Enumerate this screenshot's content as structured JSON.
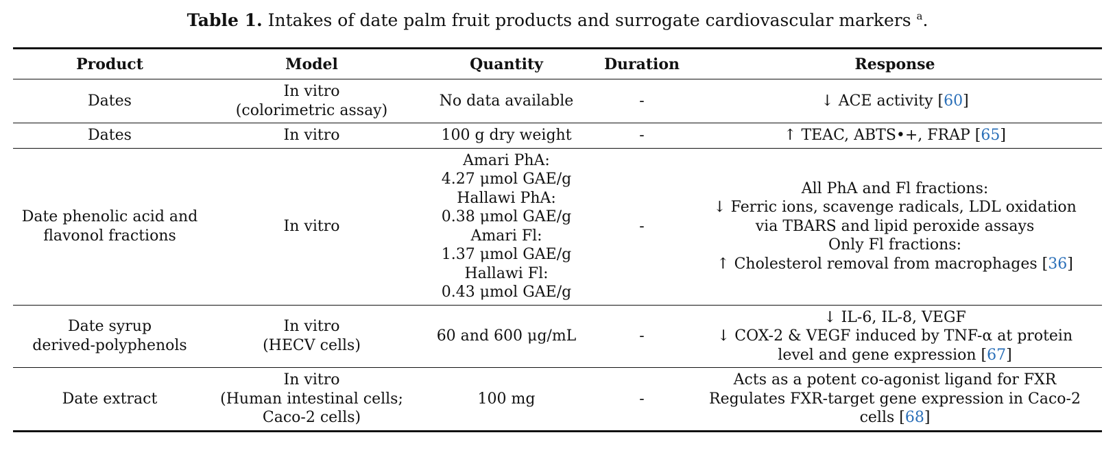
{
  "caption": {
    "label": "Table 1.",
    "text": "Intakes of date palm fruit products and surrogate cardiovascular markers",
    "footnote_mark": "a",
    "end": "."
  },
  "headers": [
    "Product",
    "Model",
    "Quantity",
    "Duration",
    "Response"
  ],
  "rows": [
    {
      "product": [
        "Dates"
      ],
      "model": [
        "In vitro",
        "(colorimetric assay)"
      ],
      "quantity": [
        "No data available"
      ],
      "duration": "-",
      "response": [
        {
          "text": "↓ ACE activity [",
          "ref": "60",
          "end": "]"
        }
      ]
    },
    {
      "product": [
        "Dates"
      ],
      "model": [
        "In vitro"
      ],
      "quantity": [
        "100 g dry weight"
      ],
      "duration": "-",
      "response": [
        {
          "text": "↑ TEAC, ABTS•+, FRAP [",
          "ref": "65",
          "end": "]"
        }
      ]
    },
    {
      "product": [
        "Date phenolic acid and",
        "flavonol fractions"
      ],
      "model": [
        "In vitro"
      ],
      "quantity": [
        "Amari PhA:",
        "4.27 μmol GAE/g",
        "Hallawi PhA:",
        "0.38 μmol GAE/g",
        "Amari Fl:",
        "1.37 μmol GAE/g",
        "Hallawi Fl:",
        "0.43 μmol GAE/g"
      ],
      "duration": "-",
      "response": [
        {
          "text": "All PhA and Fl fractions:",
          "ref": "",
          "end": ""
        },
        {
          "text": "↓ Ferric ions, scavenge radicals, LDL oxidation",
          "ref": "",
          "end": ""
        },
        {
          "text": "via TBARS and lipid peroxide assays",
          "ref": "",
          "end": ""
        },
        {
          "text": "Only Fl fractions:",
          "ref": "",
          "end": ""
        },
        {
          "text": "↑ Cholesterol removal from macrophages [",
          "ref": "36",
          "end": "]"
        }
      ]
    },
    {
      "product": [
        "Date syrup",
        "derived-polyphenols"
      ],
      "model": [
        "In vitro",
        "(HECV cells)"
      ],
      "quantity": [
        "60 and 600 μg/mL"
      ],
      "duration": "-",
      "response": [
        {
          "text": "↓ IL-6, IL-8, VEGF",
          "ref": "",
          "end": ""
        },
        {
          "text": "↓ COX-2 & VEGF induced by TNF-α at protein",
          "ref": "",
          "end": ""
        },
        {
          "text": "level and gene expression [",
          "ref": "67",
          "end": "]"
        }
      ]
    },
    {
      "product": [
        "Date extract"
      ],
      "model": [
        "In vitro",
        "(Human intestinal cells;",
        "Caco-2 cells)"
      ],
      "quantity": [
        "100 mg"
      ],
      "duration": "-",
      "response": [
        {
          "text": "Acts as a potent co-agonist ligand for FXR",
          "ref": "",
          "end": ""
        },
        {
          "text": "Regulates FXR-target gene expression in Caco-2",
          "ref": "",
          "end": ""
        },
        {
          "text": "cells [",
          "ref": "68",
          "end": "]"
        }
      ]
    }
  ]
}
